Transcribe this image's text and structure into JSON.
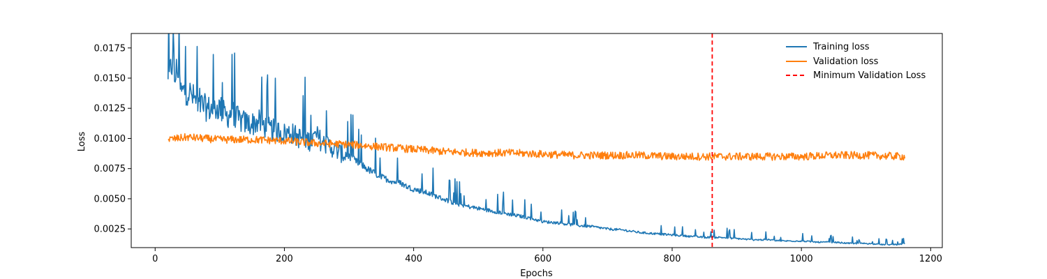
{
  "chart_data": {
    "type": "line",
    "title": "",
    "xlabel": "Epochs",
    "ylabel": "Loss",
    "xlim": [
      -37,
      1218
    ],
    "ylim": [
      0.00095,
      0.0187
    ],
    "xticks": [
      0,
      200,
      400,
      600,
      800,
      1000,
      1200
    ],
    "xtick_labels": [
      "0",
      "200",
      "400",
      "600",
      "800",
      "1000",
      "1200"
    ],
    "yticks": [
      0.0025,
      0.005,
      0.0075,
      0.01,
      0.0125,
      0.015,
      0.0175
    ],
    "ytick_labels": [
      "0.0025",
      "0.0050",
      "0.0075",
      "0.0100",
      "0.0125",
      "0.0150",
      "0.0175"
    ],
    "grid": false,
    "legend_position": "top-right",
    "series": [
      {
        "name": "Training loss",
        "color": "#1f77b4",
        "x": [
          20,
          26,
          28,
          30,
          35,
          40,
          50,
          60,
          70,
          80,
          90,
          100,
          110,
          120,
          130,
          140,
          150,
          160,
          170,
          180,
          190,
          200,
          210,
          220,
          230,
          240,
          250,
          260,
          270,
          280,
          290,
          300,
          310,
          320,
          330,
          340,
          350,
          360,
          370,
          380,
          390,
          400,
          420,
          440,
          460,
          480,
          500,
          520,
          540,
          560,
          580,
          600,
          625,
          650,
          675,
          700,
          725,
          750,
          775,
          800,
          825,
          850,
          875,
          900,
          925,
          950,
          975,
          1000,
          1025,
          1050,
          1075,
          1100,
          1125,
          1150,
          1160
        ],
        "y": [
          0.0145,
          0.0162,
          0.0181,
          0.0148,
          0.016,
          0.0138,
          0.014,
          0.0133,
          0.0128,
          0.0125,
          0.0124,
          0.0126,
          0.0118,
          0.0122,
          0.0115,
          0.0113,
          0.0112,
          0.0114,
          0.011,
          0.0107,
          0.0106,
          0.0104,
          0.0105,
          0.0101,
          0.01,
          0.0098,
          0.0102,
          0.0096,
          0.0094,
          0.009,
          0.0087,
          0.0086,
          0.0081,
          0.0078,
          0.0074,
          0.0071,
          0.0068,
          0.0066,
          0.0064,
          0.0063,
          0.006,
          0.0058,
          0.0055,
          0.0051,
          0.0047,
          0.0044,
          0.0042,
          0.004,
          0.0038,
          0.0036,
          0.0034,
          0.0031,
          0.003,
          0.0028,
          0.0027,
          0.0025,
          0.0024,
          0.0022,
          0.0021,
          0.002,
          0.0019,
          0.0018,
          0.0018,
          0.0017,
          0.0016,
          0.0016,
          0.0015,
          0.0015,
          0.0014,
          0.0014,
          0.0013,
          0.0013,
          0.0012,
          0.0012,
          0.0013
        ]
      },
      {
        "name": "Validation loss",
        "color": "#ff7f0e",
        "x": [
          20,
          50,
          100,
          150,
          200,
          250,
          300,
          350,
          400,
          450,
          500,
          550,
          600,
          650,
          700,
          750,
          800,
          850,
          900,
          950,
          1000,
          1050,
          1100,
          1160
        ],
        "y": [
          0.0099,
          0.0101,
          0.0099,
          0.0099,
          0.0098,
          0.0096,
          0.0095,
          0.0093,
          0.0091,
          0.0089,
          0.0088,
          0.0088,
          0.0087,
          0.0086,
          0.0086,
          0.0086,
          0.0085,
          0.0085,
          0.0085,
          0.0085,
          0.0085,
          0.0086,
          0.0086,
          0.0085
        ]
      }
    ],
    "vlines": [
      {
        "name": "Minimum Validation Loss",
        "x": 862,
        "color": "#ff0000",
        "style": "dashed"
      }
    ]
  }
}
